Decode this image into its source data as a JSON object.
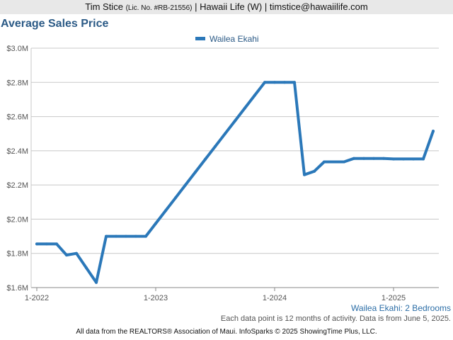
{
  "header": {
    "name": "Tim Stice",
    "license": "(Lic. No. #RB-21556)",
    "rest": "| Hawaii Life (W) | timstice@hawaiilife.com"
  },
  "chart_data": {
    "type": "line",
    "title": "Average Sales Price",
    "xlabel": "",
    "ylabel": "",
    "ylim": [
      1600000,
      3000000
    ],
    "y_ticks": [
      1600000,
      1800000,
      2000000,
      2200000,
      2400000,
      2600000,
      2800000,
      3000000
    ],
    "y_tick_labels": [
      "$1.6M",
      "$1.8M",
      "$2.0M",
      "$2.2M",
      "$2.4M",
      "$2.6M",
      "$2.8M",
      "$3.0M"
    ],
    "x_tick_labels": [
      "1-2022",
      "1-2023",
      "1-2024",
      "1-2025"
    ],
    "x_tick_positions": [
      "2022-01",
      "2023-01",
      "2024-01",
      "2025-01"
    ],
    "xlim": [
      "2022-01",
      "2025-05"
    ],
    "grid": true,
    "legend_position": "top-center",
    "series": [
      {
        "name": "Wailea Ekahi",
        "color": "#2b78b9",
        "x": [
          "2022-01",
          "2022-02",
          "2022-03",
          "2022-04",
          "2022-05",
          "2022-06",
          "2022-07",
          "2022-08",
          "2022-09",
          "2022-10",
          "2022-11",
          "2022-12",
          "2023-01",
          "2023-02",
          "2023-03",
          "2023-04",
          "2023-05",
          "2023-06",
          "2023-07",
          "2023-08",
          "2023-09",
          "2023-10",
          "2023-11",
          "2023-12",
          "2024-01",
          "2024-02",
          "2024-03",
          "2024-04",
          "2024-05",
          "2024-06",
          "2024-07",
          "2024-08",
          "2024-09",
          "2024-10",
          "2024-11",
          "2024-12",
          "2025-01",
          "2025-02",
          "2025-03",
          "2025-04",
          "2025-05"
        ],
        "values": [
          1855000,
          1855000,
          1855000,
          1790000,
          1800000,
          1715000,
          1630000,
          1900000,
          1900000,
          1900000,
          1900000,
          1900000,
          1975000,
          2050000,
          2125000,
          2200000,
          2275000,
          2350000,
          2425000,
          2500000,
          2575000,
          2650000,
          2725000,
          2800000,
          2800000,
          2800000,
          2800000,
          2260000,
          2280000,
          2335000,
          2335000,
          2335000,
          2355000,
          2355000,
          2355000,
          2355000,
          2352000,
          2352000,
          2352000,
          2352000,
          2515000
        ]
      }
    ]
  },
  "subtitle": "Wailea Ekahi: 2 Bedrooms",
  "footnote": "Each data point is 12 months of activity. Data is from June 5, 2025.",
  "footer": "All data from the REALTORS® Association of Maui. InfoSparks © 2025 ShowingTime Plus, LLC."
}
